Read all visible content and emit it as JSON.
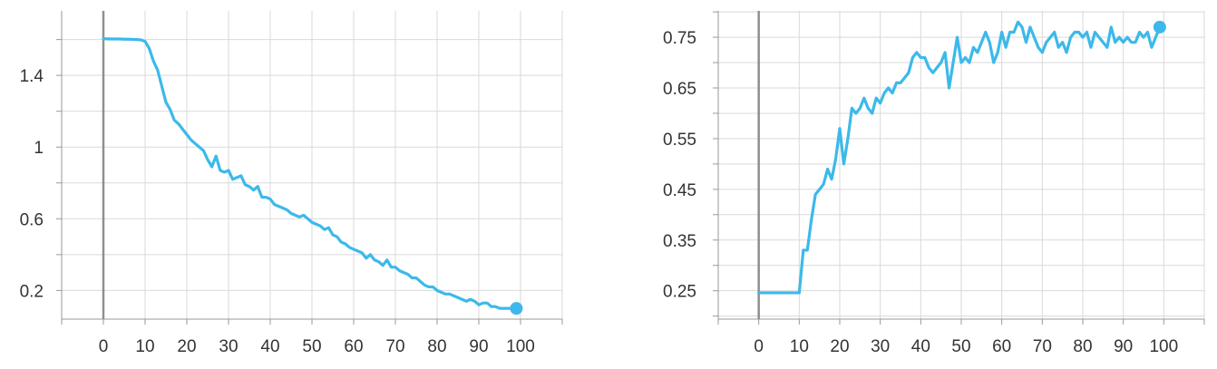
{
  "chart_data": [
    {
      "type": "line",
      "title": "",
      "xlabel": "",
      "ylabel": "",
      "xlim": [
        -10,
        110
      ],
      "ylim": [
        0.04,
        1.76
      ],
      "x_ticks": [
        0,
        10,
        20,
        30,
        40,
        50,
        60,
        70,
        80,
        90,
        100
      ],
      "x_tick_labels": [
        "0",
        "10",
        "20",
        "30",
        "40",
        "50",
        "60",
        "70",
        "80",
        "90",
        "100"
      ],
      "x_minor_ticks": [
        -10,
        110
      ],
      "y_ticks": [
        0.2,
        0.6,
        1.0,
        1.4
      ],
      "y_tick_labels": [
        "0.2",
        "0.6",
        "1",
        "1.4"
      ],
      "y_minor_ticks": [
        0.0,
        0.4,
        0.8,
        1.2,
        1.6
      ],
      "grid": true,
      "line_color": "#3cb9ea",
      "series": [
        {
          "x": [
            0,
            1,
            2,
            3,
            4,
            5,
            6,
            7,
            8,
            9,
            10,
            11,
            12,
            13,
            14,
            15,
            16,
            17,
            18,
            19,
            20,
            21,
            22,
            23,
            24,
            25,
            26,
            27,
            28,
            29,
            30,
            31,
            32,
            33,
            34,
            35,
            36,
            37,
            38,
            39,
            40,
            41,
            42,
            43,
            44,
            45,
            46,
            47,
            48,
            49,
            50,
            51,
            52,
            53,
            54,
            55,
            56,
            57,
            58,
            59,
            60,
            61,
            62,
            63,
            64,
            65,
            66,
            67,
            68,
            69,
            70,
            71,
            72,
            73,
            74,
            75,
            76,
            77,
            78,
            79,
            80,
            81,
            82,
            83,
            84,
            85,
            86,
            87,
            88,
            89,
            90,
            91,
            92,
            93,
            94,
            95,
            96,
            97,
            98,
            99
          ],
          "values": [
            1.605,
            1.604,
            1.603,
            1.603,
            1.603,
            1.602,
            1.602,
            1.601,
            1.6,
            1.598,
            1.59,
            1.55,
            1.48,
            1.43,
            1.34,
            1.25,
            1.21,
            1.15,
            1.13,
            1.1,
            1.07,
            1.04,
            1.02,
            1.0,
            0.98,
            0.93,
            0.89,
            0.95,
            0.87,
            0.86,
            0.87,
            0.82,
            0.83,
            0.84,
            0.79,
            0.78,
            0.76,
            0.78,
            0.72,
            0.72,
            0.71,
            0.68,
            0.67,
            0.66,
            0.65,
            0.63,
            0.62,
            0.61,
            0.62,
            0.6,
            0.58,
            0.57,
            0.56,
            0.54,
            0.55,
            0.51,
            0.5,
            0.47,
            0.46,
            0.44,
            0.43,
            0.42,
            0.41,
            0.38,
            0.4,
            0.37,
            0.36,
            0.34,
            0.37,
            0.33,
            0.33,
            0.31,
            0.3,
            0.29,
            0.27,
            0.27,
            0.25,
            0.23,
            0.22,
            0.22,
            0.2,
            0.19,
            0.18,
            0.18,
            0.17,
            0.16,
            0.15,
            0.14,
            0.15,
            0.14,
            0.12,
            0.13,
            0.13,
            0.11,
            0.11,
            0.1,
            0.1,
            0.1,
            0.1,
            0.1
          ]
        }
      ]
    },
    {
      "type": "line",
      "title": "",
      "xlabel": "",
      "ylabel": "",
      "xlim": [
        -10,
        110
      ],
      "ylim": [
        0.194,
        0.802
      ],
      "x_ticks": [
        0,
        10,
        20,
        30,
        40,
        50,
        60,
        70,
        80,
        90,
        100
      ],
      "x_tick_labels": [
        "0",
        "10",
        "20",
        "30",
        "40",
        "50",
        "60",
        "70",
        "80",
        "90",
        "100"
      ],
      "x_minor_ticks": [
        -10,
        110
      ],
      "y_ticks": [
        0.25,
        0.35,
        0.45,
        0.55,
        0.65,
        0.75
      ],
      "y_tick_labels": [
        "0.25",
        "0.35",
        "0.45",
        "0.55",
        "0.65",
        "0.75"
      ],
      "y_minor_ticks": [
        0.2,
        0.3,
        0.4,
        0.5,
        0.6,
        0.7,
        0.8
      ],
      "grid": true,
      "line_color": "#3cb9ea",
      "series": [
        {
          "x": [
            0,
            1,
            2,
            3,
            4,
            5,
            6,
            7,
            8,
            9,
            10,
            11,
            12,
            13,
            14,
            15,
            16,
            17,
            18,
            19,
            20,
            21,
            22,
            23,
            24,
            25,
            26,
            27,
            28,
            29,
            30,
            31,
            32,
            33,
            34,
            35,
            36,
            37,
            38,
            39,
            40,
            41,
            42,
            43,
            44,
            45,
            46,
            47,
            48,
            49,
            50,
            51,
            52,
            53,
            54,
            55,
            56,
            57,
            58,
            59,
            60,
            61,
            62,
            63,
            64,
            65,
            66,
            67,
            68,
            69,
            70,
            71,
            72,
            73,
            74,
            75,
            76,
            77,
            78,
            79,
            80,
            81,
            82,
            83,
            84,
            85,
            86,
            87,
            88,
            89,
            90,
            91,
            92,
            93,
            94,
            95,
            96,
            97,
            98,
            99
          ],
          "values": [
            0.246,
            0.246,
            0.246,
            0.246,
            0.246,
            0.246,
            0.246,
            0.246,
            0.246,
            0.246,
            0.246,
            0.33,
            0.33,
            0.39,
            0.44,
            0.45,
            0.46,
            0.49,
            0.47,
            0.51,
            0.57,
            0.5,
            0.55,
            0.61,
            0.6,
            0.61,
            0.63,
            0.61,
            0.6,
            0.63,
            0.62,
            0.64,
            0.65,
            0.64,
            0.66,
            0.66,
            0.67,
            0.68,
            0.71,
            0.72,
            0.71,
            0.71,
            0.69,
            0.68,
            0.69,
            0.7,
            0.72,
            0.65,
            0.7,
            0.75,
            0.7,
            0.71,
            0.7,
            0.73,
            0.72,
            0.74,
            0.76,
            0.74,
            0.7,
            0.72,
            0.76,
            0.73,
            0.76,
            0.76,
            0.78,
            0.77,
            0.74,
            0.77,
            0.75,
            0.73,
            0.72,
            0.74,
            0.75,
            0.76,
            0.73,
            0.74,
            0.72,
            0.75,
            0.76,
            0.76,
            0.75,
            0.76,
            0.73,
            0.76,
            0.75,
            0.74,
            0.73,
            0.77,
            0.74,
            0.75,
            0.74,
            0.75,
            0.74,
            0.74,
            0.76,
            0.75,
            0.76,
            0.73,
            0.75,
            0.77
          ]
        }
      ]
    }
  ]
}
